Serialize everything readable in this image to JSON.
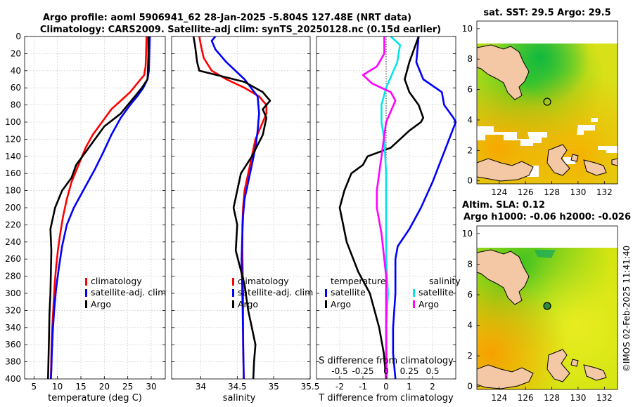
{
  "figure": {
    "title_line1": "Argo profile: aoml 5906941_62 28-Jan-2025 -5.804S 127.48E (NRT data)",
    "title_line2": "Climatology: CARS2009. Satellite-adj clim: synTS_20250128.nc (0.15d earlier)",
    "credit": "©IMOS 02-Feb-2025 11:41:40"
  },
  "colors": {
    "climatology": "#ff0000",
    "satellite": "#0000ff",
    "argo": "#000000",
    "s_satellite": "#00e5ee",
    "s_climatology": "#ff00ff",
    "land": "#f4c8a4"
  },
  "panels": {
    "temperature": {
      "xlabel": "temperature (deg C)",
      "legend": [
        "climatology",
        "satellite-adj. clim",
        "Argo"
      ]
    },
    "salinity": {
      "xlabel": "salinity",
      "legend": [
        "climatology",
        "satellite-adj. clim",
        "Argo"
      ]
    },
    "difference": {
      "xlabel": "T difference from climatology",
      "top_axis_label": "S difference from climatology",
      "top_ticks": [
        "-0.5",
        "-0.25",
        "0",
        "0.25",
        "0.5"
      ],
      "legend_temperature_title": "temperature",
      "legend_salinity_title": "salinity",
      "legend_items": [
        "satellite",
        "Argo",
        "satellite",
        "Argo"
      ]
    },
    "sst_map": {
      "title": "sat. SST: 29.5 Argo: 29.5"
    },
    "sla_map": {
      "title_line1": "Altim. SLA: 0.12",
      "title_line2": "Argo h1000: -0.06 h2000: -0.026"
    }
  },
  "chart_data": [
    {
      "type": "line",
      "name": "temperature profile",
      "xlabel": "temperature (deg C)",
      "ylabel": "depth",
      "xlim": [
        3,
        33
      ],
      "ylim": [
        0,
        400
      ],
      "y_reversed": true,
      "xticks": [
        5,
        10,
        15,
        20,
        25,
        30
      ],
      "yticks": [
        0,
        20,
        40,
        60,
        80,
        100,
        120,
        140,
        160,
        180,
        200,
        220,
        240,
        260,
        280,
        300,
        320,
        340,
        360,
        380,
        400
      ],
      "series": [
        {
          "name": "climatology",
          "color": "#ff0000",
          "x": [
            29.0,
            28.9,
            28.8,
            28.5,
            27.0,
            25.5,
            23.5,
            21.5,
            19.5,
            17.5,
            16.0,
            14.5,
            13.0,
            12.0,
            11.2,
            10.6,
            10.1,
            9.7,
            9.4,
            9.2,
            9.0,
            8.8,
            8.7,
            8.6
          ],
          "y": [
            0,
            20,
            35,
            45,
            55,
            65,
            75,
            85,
            100,
            115,
            130,
            150,
            170,
            190,
            210,
            230,
            250,
            270,
            290,
            310,
            330,
            350,
            375,
            400
          ]
        },
        {
          "name": "satellite-adj. clim",
          "color": "#0000ff",
          "x": [
            29.7,
            29.6,
            29.5,
            29.2,
            28.3,
            27.0,
            25.5,
            23.5,
            21.5,
            19.8,
            18.0,
            15.5,
            13.5,
            12.0,
            11.0,
            10.3,
            9.7,
            9.3,
            9.0,
            8.8,
            8.7,
            8.6
          ],
          "y": [
            0,
            20,
            40,
            50,
            60,
            70,
            80,
            95,
            115,
            135,
            155,
            180,
            200,
            220,
            245,
            270,
            295,
            320,
            345,
            370,
            390,
            400
          ]
        },
        {
          "name": "Argo",
          "color": "#000000",
          "x": [
            29.4,
            29.4,
            29.3,
            29.2,
            28.0,
            26.5,
            25.0,
            23.5,
            20.0,
            18.0,
            16.0,
            14.0,
            13.0,
            11.0,
            9.5,
            8.5,
            8.7,
            8.5,
            8.3,
            8.2,
            8.1,
            8.0
          ],
          "y": [
            0,
            20,
            40,
            50,
            60,
            70,
            80,
            90,
            105,
            120,
            135,
            150,
            165,
            180,
            200,
            225,
            250,
            300,
            325,
            350,
            375,
            400
          ]
        }
      ]
    },
    {
      "type": "line",
      "name": "salinity profile",
      "xlabel": "salinity",
      "ylabel": "depth",
      "xlim": [
        33.6,
        35.5
      ],
      "ylim": [
        0,
        400
      ],
      "y_reversed": true,
      "xticks": [
        34,
        34.5,
        35,
        35.5
      ],
      "series": [
        {
          "name": "climatology",
          "color": "#ff0000",
          "x": [
            33.98,
            34.0,
            34.04,
            34.15,
            34.35,
            34.6,
            34.8,
            34.9,
            34.9,
            34.85,
            34.75,
            34.7,
            34.65,
            34.6,
            34.58,
            34.57,
            34.57,
            34.58,
            34.58,
            34.58,
            34.59
          ],
          "y": [
            0,
            10,
            25,
            40,
            50,
            60,
            70,
            80,
            90,
            100,
            120,
            140,
            160,
            180,
            200,
            220,
            250,
            300,
            330,
            360,
            400
          ]
        },
        {
          "name": "satellite-adj. clim",
          "color": "#0000ff",
          "x": [
            34.2,
            34.15,
            34.2,
            34.35,
            34.6,
            34.78,
            34.8,
            34.78,
            34.75,
            34.7,
            34.65,
            34.6,
            34.58,
            34.57,
            34.56,
            34.57,
            34.58,
            34.59
          ],
          "y": [
            0,
            5,
            15,
            30,
            50,
            70,
            90,
            110,
            130,
            150,
            170,
            190,
            210,
            230,
            260,
            300,
            350,
            400
          ]
        },
        {
          "name": "Argo",
          "color": "#000000",
          "x": [
            33.9,
            33.92,
            33.95,
            33.98,
            34.6,
            34.85,
            34.95,
            34.85,
            34.9,
            34.85,
            34.7,
            34.55,
            34.5,
            34.45,
            34.5,
            34.48,
            34.6,
            34.65,
            34.7,
            34.75,
            34.73,
            34.72
          ],
          "y": [
            0,
            10,
            30,
            40,
            53,
            65,
            75,
            85,
            95,
            115,
            140,
            160,
            180,
            200,
            220,
            250,
            290,
            320,
            340,
            360,
            380,
            400
          ]
        }
      ]
    },
    {
      "type": "line",
      "name": "difference from climatology",
      "xlabel": "T difference from climatology",
      "top_xlabel": "S difference from climatology",
      "xlim": [
        -3,
        3
      ],
      "top_xlim": [
        -0.75,
        0.75
      ],
      "ylim": [
        0,
        400
      ],
      "y_reversed": true,
      "xticks": [
        -2,
        -1,
        0,
        1,
        2
      ],
      "top_xticks": [
        -0.5,
        -0.25,
        0,
        0.25,
        0.5
      ],
      "series": [
        {
          "name": "temperature satellite",
          "axis": "T",
          "color": "#0000ff",
          "x": [
            1.4,
            1.3,
            1.6,
            2.4,
            2.5,
            2.9,
            3.0,
            2.0,
            1.5,
            1.0,
            0.5,
            0.4,
            0.4,
            0.3,
            0.3,
            0.4
          ],
          "y": [
            0,
            30,
            50,
            65,
            80,
            95,
            100,
            170,
            200,
            225,
            245,
            260,
            300,
            340,
            370,
            400
          ]
        },
        {
          "name": "temperature Argo",
          "axis": "T",
          "color": "#000000",
          "x": [
            1.4,
            1.0,
            0.8,
            1.0,
            1.4,
            1.6,
            1.5,
            1.0,
            0.2,
            -0.8,
            -1.0,
            -1.5,
            -1.8,
            -2.0,
            -1.7,
            -1.2,
            -0.7,
            -0.5,
            -0.3,
            -0.1,
            0.0
          ],
          "y": [
            0,
            30,
            50,
            65,
            80,
            95,
            100,
            110,
            130,
            140,
            150,
            160,
            180,
            200,
            240,
            275,
            300,
            320,
            340,
            370,
            400
          ]
        },
        {
          "name": "salinity satellite",
          "axis": "S",
          "color": "#00e5ee",
          "x": [
            0.05,
            0.15,
            0.12,
            0.0,
            -0.05,
            -0.05,
            -0.02,
            0.0,
            0.0,
            0.0,
            0.02,
            0.0,
            0.01
          ],
          "y": [
            0,
            10,
            30,
            60,
            80,
            100,
            120,
            160,
            200,
            260,
            300,
            340,
            400
          ]
        },
        {
          "name": "salinity Argo",
          "axis": "S",
          "color": "#ff00ff",
          "x": [
            -0.02,
            -0.02,
            -0.1,
            -0.25,
            -0.15,
            0.05,
            0.1,
            0.0,
            -0.05,
            -0.1,
            -0.1,
            -0.05,
            0.0,
            0.0,
            0.0
          ],
          "y": [
            0,
            20,
            35,
            45,
            55,
            65,
            75,
            100,
            140,
            180,
            200,
            230,
            280,
            340,
            400
          ]
        }
      ]
    },
    {
      "type": "heatmap",
      "name": "sat. SST map",
      "title": "sat. SST: 29.5 Argo: 29.5",
      "xlim": [
        122.3,
        133
      ],
      "ylim": [
        -0.2,
        10.5
      ],
      "xticks": [
        124,
        126,
        128,
        130,
        132
      ],
      "yticks": [
        0,
        2,
        4,
        6,
        8,
        10
      ],
      "argo_position": [
        127.5,
        5.8
      ]
    },
    {
      "type": "heatmap",
      "name": "altimetry SLA map",
      "title": "Altim. SLA: 0.12 / Argo h1000: -0.06 h2000: -0.026",
      "xlim": [
        122.3,
        133
      ],
      "ylim": [
        -0.2,
        10.5
      ],
      "xticks": [
        124,
        126,
        128,
        130,
        132
      ],
      "yticks": [
        0,
        2,
        4,
        6,
        8,
        10
      ],
      "argo_position": [
        127.5,
        5.8
      ]
    }
  ]
}
